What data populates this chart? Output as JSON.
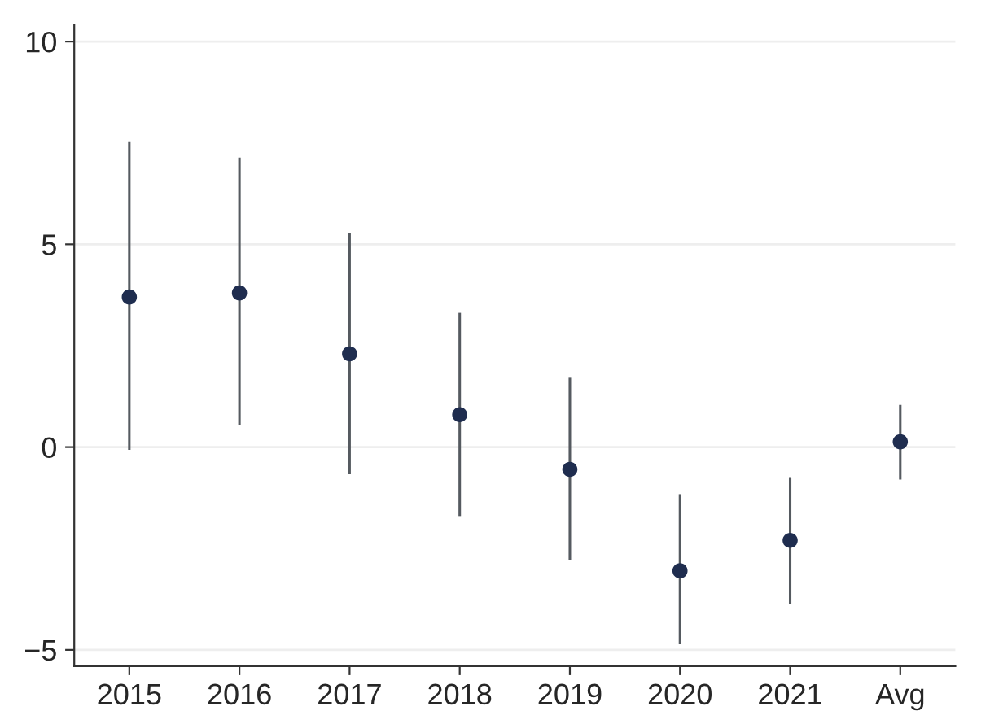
{
  "chart_data": {
    "type": "scatter",
    "categories": [
      "2015",
      "2016",
      "2017",
      "2018",
      "2019",
      "2020",
      "2021",
      "Avg"
    ],
    "values": [
      3.7,
      3.8,
      2.3,
      0.8,
      -0.55,
      -3.05,
      -2.3,
      0.13
    ],
    "errors": [
      [
        -0.07,
        7.54
      ],
      [
        0.54,
        7.14
      ],
      [
        -0.67,
        5.29
      ],
      [
        -1.7,
        3.31
      ],
      [
        -2.78,
        1.71
      ],
      [
        -4.86,
        -1.16
      ],
      [
        -3.88,
        -0.74
      ],
      [
        -0.8,
        1.04
      ]
    ],
    "color": "#1f2d4f",
    "marker": "circle",
    "ylim": [
      -5.4,
      10.4
    ],
    "yticks": [
      {
        "value": -5,
        "label": "−5"
      },
      0,
      5,
      10
    ],
    "grid": "y"
  }
}
